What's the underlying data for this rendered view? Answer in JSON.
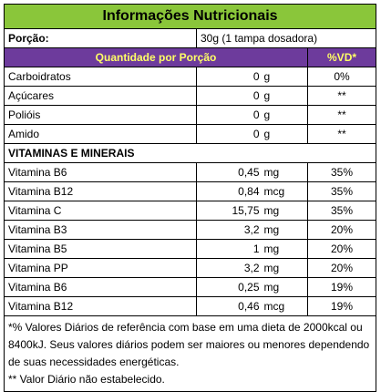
{
  "title": "Informações Nutricionais",
  "porcao": {
    "label": "Porção:",
    "value": "30g (1 tampa dosadora)"
  },
  "header": {
    "quantidade": "Quantidade por Porção",
    "vd": "%VD*"
  },
  "nutrients": [
    {
      "name": "Carboidratos",
      "amount": "0",
      "unit": "g",
      "vd": "0%"
    },
    {
      "name": "Açúcares",
      "amount": "0",
      "unit": "g",
      "vd": "**"
    },
    {
      "name": "Polióis",
      "amount": "0",
      "unit": "g",
      "vd": "**"
    },
    {
      "name": "Amido",
      "amount": "0",
      "unit": "g",
      "vd": "**"
    }
  ],
  "section_title": "VITAMINAS E MINERAIS",
  "vitamins": [
    {
      "name": "Vitamina B6",
      "amount": "0,45",
      "unit": "mg",
      "vd": "35%"
    },
    {
      "name": "Vitamina B12",
      "amount": "0,84",
      "unit": "mcg",
      "vd": "35%"
    },
    {
      "name": "Vitamina C",
      "amount": "15,75",
      "unit": "mg",
      "vd": "35%"
    },
    {
      "name": "Vitamina B3",
      "amount": "3,2",
      "unit": "mg",
      "vd": "20%"
    },
    {
      "name": "Vitamina B5",
      "amount": "1",
      "unit": "mg",
      "vd": "20%"
    },
    {
      "name": "Vitamina PP",
      "amount": "3,2",
      "unit": "mg",
      "vd": "20%"
    },
    {
      "name": "Vitamina B6",
      "amount": "0,25",
      "unit": "mg",
      "vd": "19%"
    },
    {
      "name": "Vitamina B12",
      "amount": "0,46",
      "unit": "mcg",
      "vd": "19%"
    }
  ],
  "footnote": {
    "line1": " *% Valores Diários de referência com base em uma dieta de 2000kcal ou 8400kJ. Seus valores diários podem ser maiores ou menores dependendo de suas necessidades energéticas.",
    "line2": "** Valor Diário não estabelecido."
  },
  "colors": {
    "title_bg": "#8ac63a",
    "header_bg": "#6d3b9c",
    "header_text": "#ffff66"
  }
}
